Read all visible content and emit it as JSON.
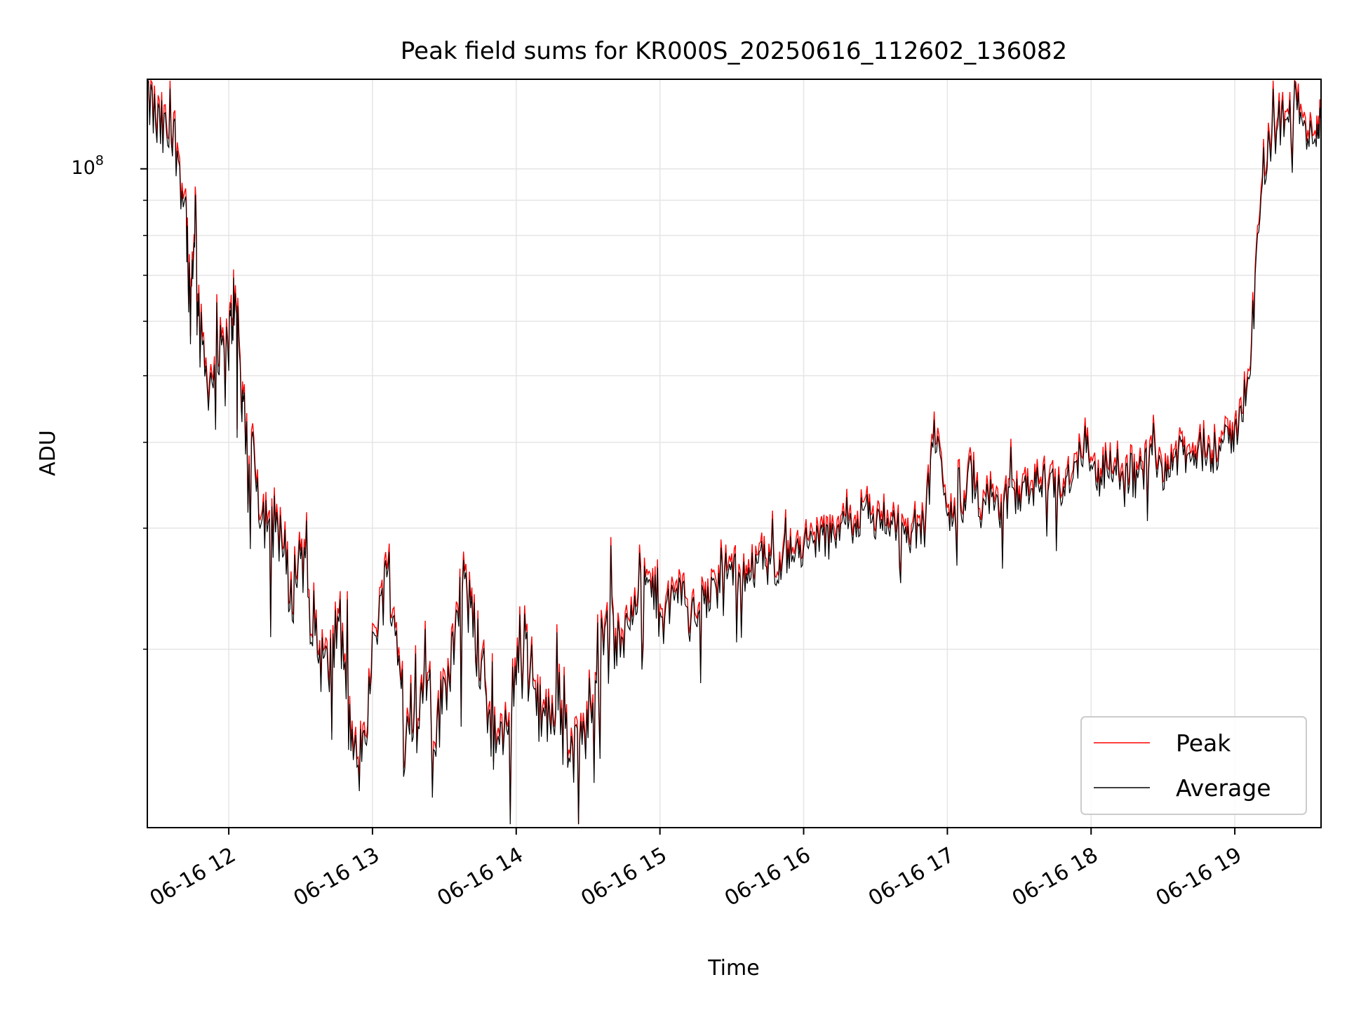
{
  "chart_data": {
    "type": "line",
    "title": "Peak field sums for KR000S_20250616_112602_136082",
    "xlabel": "Time",
    "ylabel": "ADU",
    "x_tick_labels": [
      "06-16 12",
      "06-16 13",
      "06-16 14",
      "06-16 15",
      "06-16 16",
      "06-16 17",
      "06-16 18",
      "06-16 19"
    ],
    "y_tick_label": {
      "base": "10",
      "exp": "8"
    },
    "y_scale": "log",
    "grid": true,
    "legend_position": "lower-right",
    "x_range": [
      "06-16 11:26",
      "06-16 19:36"
    ],
    "y_range": [
      11000000,
      135000000
    ],
    "series": [
      {
        "name": "Peak",
        "color": "#ff0000",
        "points": [
          [
            "06-16 11:26",
            132000000
          ],
          [
            "06-16 11:30",
            118000000
          ],
          [
            "06-16 11:34",
            114000000
          ],
          [
            "06-16 11:38",
            112000000
          ],
          [
            "06-16 11:42",
            90000000
          ],
          [
            "06-16 11:44",
            64000000
          ],
          [
            "06-16 11:46",
            90000000
          ],
          [
            "06-16 11:48",
            58000000
          ],
          [
            "06-16 11:52",
            50000000
          ],
          [
            "06-16 11:56",
            54000000
          ],
          [
            "06-16 12:00",
            57000000
          ],
          [
            "06-16 12:02",
            65000000
          ],
          [
            "06-16 12:04",
            60000000
          ],
          [
            "06-16 12:06",
            44000000
          ],
          [
            "06-16 12:10",
            40000000
          ],
          [
            "06-16 12:14",
            32000000
          ],
          [
            "06-16 12:18",
            33000000
          ],
          [
            "06-16 12:22",
            30000000
          ],
          [
            "06-16 12:26",
            24000000
          ],
          [
            "06-16 12:30",
            29000000
          ],
          [
            "06-16 12:34",
            24000000
          ],
          [
            "06-16 12:38",
            20000000
          ],
          [
            "06-16 12:42",
            19000000
          ],
          [
            "06-16 12:46",
            23000000
          ],
          [
            "06-16 12:50",
            16000000
          ],
          [
            "06-16 12:54",
            13500000
          ],
          [
            "06-16 12:58",
            17000000
          ],
          [
            "06-16 13:02",
            23000000
          ],
          [
            "06-16 13:06",
            26000000
          ],
          [
            "06-16 13:10",
            21000000
          ],
          [
            "06-16 13:14",
            18000000
          ],
          [
            "06-16 13:18",
            16000000
          ],
          [
            "06-16 13:22",
            20000000
          ],
          [
            "06-16 13:26",
            15000000
          ],
          [
            "06-16 13:30",
            18000000
          ],
          [
            "06-16 13:34",
            21000000
          ],
          [
            "06-16 13:38",
            26000000
          ],
          [
            "06-16 13:42",
            22000000
          ],
          [
            "06-16 13:46",
            19000000
          ],
          [
            "06-16 13:50",
            15500000
          ],
          [
            "06-16 13:54",
            14500000
          ],
          [
            "06-16 13:58",
            17500000
          ],
          [
            "06-16 14:02",
            22000000
          ],
          [
            "06-16 14:06",
            19000000
          ],
          [
            "06-16 14:10",
            17000000
          ],
          [
            "06-16 14:14",
            16000000
          ],
          [
            "06-16 14:18",
            18000000
          ],
          [
            "06-16 14:22",
            15000000
          ],
          [
            "06-16 14:26",
            14000000
          ],
          [
            "06-16 14:30",
            16500000
          ],
          [
            "06-16 14:34",
            21000000
          ],
          [
            "06-16 14:38",
            23500000
          ],
          [
            "06-16 14:42",
            20000000
          ],
          [
            "06-16 14:46",
            22500000
          ],
          [
            "06-16 14:50",
            25500000
          ],
          [
            "06-16 14:54",
            25000000
          ],
          [
            "06-16 14:58",
            24500000
          ],
          [
            "06-16 15:02",
            23000000
          ],
          [
            "06-16 15:06",
            24500000
          ],
          [
            "06-16 15:10",
            25000000
          ],
          [
            "06-16 15:14",
            23000000
          ],
          [
            "06-16 15:18",
            24000000
          ],
          [
            "06-16 15:22",
            25000000
          ],
          [
            "06-16 15:26",
            26500000
          ],
          [
            "06-16 15:30",
            27000000
          ],
          [
            "06-16 15:34",
            26000000
          ],
          [
            "06-16 15:38",
            27500000
          ],
          [
            "06-16 15:42",
            28000000
          ],
          [
            "06-16 15:46",
            26500000
          ],
          [
            "06-16 15:50",
            27500000
          ],
          [
            "06-16 15:54",
            28500000
          ],
          [
            "06-16 15:58",
            28000000
          ],
          [
            "06-16 16:02",
            29000000
          ],
          [
            "06-16 16:06",
            30000000
          ],
          [
            "06-16 16:10",
            29500000
          ],
          [
            "06-16 16:14",
            31000000
          ],
          [
            "06-16 16:18",
            32000000
          ],
          [
            "06-16 16:22",
            31500000
          ],
          [
            "06-16 16:26",
            32500000
          ],
          [
            "06-16 16:30",
            31000000
          ],
          [
            "06-16 16:34",
            32000000
          ],
          [
            "06-16 16:38",
            31500000
          ],
          [
            "06-16 16:42",
            30000000
          ],
          [
            "06-16 16:46",
            31000000
          ],
          [
            "06-16 16:50",
            30500000
          ],
          [
            "06-16 16:54",
            42000000
          ],
          [
            "06-16 16:58",
            37000000
          ],
          [
            "06-16 17:02",
            31000000
          ],
          [
            "06-16 17:06",
            32000000
          ],
          [
            "06-16 17:10",
            38000000
          ],
          [
            "06-16 17:14",
            33000000
          ],
          [
            "06-16 17:18",
            34000000
          ],
          [
            "06-16 17:22",
            31500000
          ],
          [
            "06-16 17:26",
            33500000
          ],
          [
            "06-16 17:30",
            34500000
          ],
          [
            "06-16 17:34",
            35000000
          ],
          [
            "06-16 17:38",
            35500000
          ],
          [
            "06-16 17:42",
            36000000
          ],
          [
            "06-16 17:46",
            34500000
          ],
          [
            "06-16 17:50",
            36500000
          ],
          [
            "06-16 17:54",
            38000000
          ],
          [
            "06-16 17:58",
            42000000
          ],
          [
            "06-16 18:02",
            36000000
          ],
          [
            "06-16 18:06",
            37500000
          ],
          [
            "06-16 18:10",
            38000000
          ],
          [
            "06-16 18:14",
            37000000
          ],
          [
            "06-16 18:18",
            38500000
          ],
          [
            "06-16 18:22",
            37500000
          ],
          [
            "06-16 18:26",
            39000000
          ],
          [
            "06-16 18:30",
            37500000
          ],
          [
            "06-16 18:34",
            38500000
          ],
          [
            "06-16 18:38",
            39500000
          ],
          [
            "06-16 18:42",
            38500000
          ],
          [
            "06-16 18:46",
            40000000
          ],
          [
            "06-16 18:50",
            39000000
          ],
          [
            "06-16 18:54",
            40500000
          ],
          [
            "06-16 18:58",
            41000000
          ],
          [
            "06-16 19:02",
            44000000
          ],
          [
            "06-16 19:06",
            52000000
          ],
          [
            "06-16 19:10",
            85000000
          ],
          [
            "06-16 19:14",
            110000000
          ],
          [
            "06-16 19:18",
            115000000
          ],
          [
            "06-16 19:22",
            126000000
          ],
          [
            "06-16 19:26",
            130000000
          ],
          [
            "06-16 19:30",
            112000000
          ],
          [
            "06-16 19:34",
            118000000
          ],
          [
            "06-16 19:36",
            120000000
          ]
        ]
      },
      {
        "name": "Average",
        "color": "#000000",
        "points": []
      }
    ]
  }
}
